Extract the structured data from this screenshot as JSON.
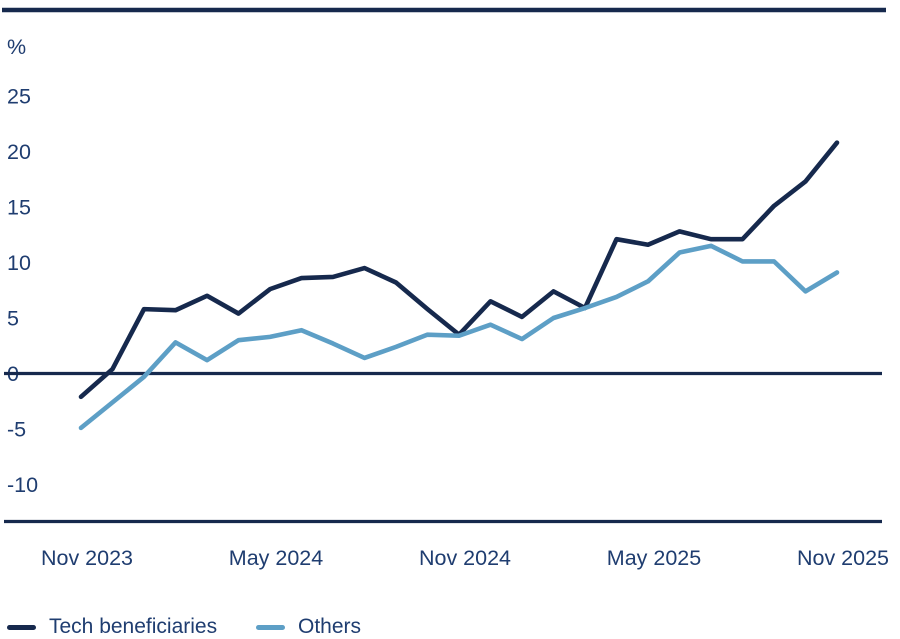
{
  "page": {
    "background": "#ffffff"
  },
  "colors": {
    "navy": "#16294d",
    "light_blue": "#5d9fc6",
    "axis_text": "#1f3d70",
    "axis_line": "#16294d"
  },
  "chart_data": {
    "type": "line",
    "title": "",
    "unit_label": "%",
    "xlabel": "",
    "ylabel": "%",
    "ylim": [
      -10,
      25
    ],
    "grid": false,
    "zero_baseline": true,
    "legend_position": "bottom-left",
    "x": [
      "Nov 2023",
      "Dec 2023",
      "Jan 2024",
      "Feb 2024",
      "Mar 2024",
      "Apr 2024",
      "May 2024",
      "Jun 2024",
      "Jul 2024",
      "Aug 2024",
      "Sep 2024",
      "Oct 2024",
      "Nov 2024",
      "Dec 2024",
      "Jan 2025",
      "Feb 2025",
      "Mar 2025",
      "Apr 2025",
      "May 2025",
      "Jun 2025",
      "Jul 2025",
      "Aug 2025",
      "Sep 2025",
      "Oct 2025",
      "Nov 2025"
    ],
    "x_tick_indices": [
      0,
      6,
      12,
      18,
      24
    ],
    "x_tick_labels": [
      "Nov 2023",
      "May 2024",
      "Nov 2024",
      "May 2025",
      "Nov 2025"
    ],
    "y_ticks": [
      25,
      20,
      15,
      10,
      5,
      0,
      -5,
      -10
    ],
    "series": [
      {
        "name": "Tech beneficiaries",
        "color": "#16294d",
        "values": [
          -2.1,
          0.4,
          5.8,
          5.7,
          7.0,
          5.4,
          7.6,
          8.6,
          8.7,
          9.5,
          8.2,
          5.8,
          3.5,
          6.5,
          5.1,
          7.4,
          5.9,
          12.1,
          11.6,
          12.8,
          12.1,
          12.1,
          15.1,
          17.3,
          20.8
        ]
      },
      {
        "name": "Others",
        "color": "#5d9fc6",
        "values": [
          -4.9,
          -2.6,
          -0.3,
          2.8,
          1.2,
          3.0,
          3.3,
          3.9,
          2.7,
          1.4,
          2.4,
          3.5,
          3.4,
          4.4,
          3.1,
          5.0,
          5.9,
          6.9,
          8.3,
          10.9,
          11.5,
          10.1,
          10.1,
          7.4,
          9.1
        ]
      }
    ]
  }
}
